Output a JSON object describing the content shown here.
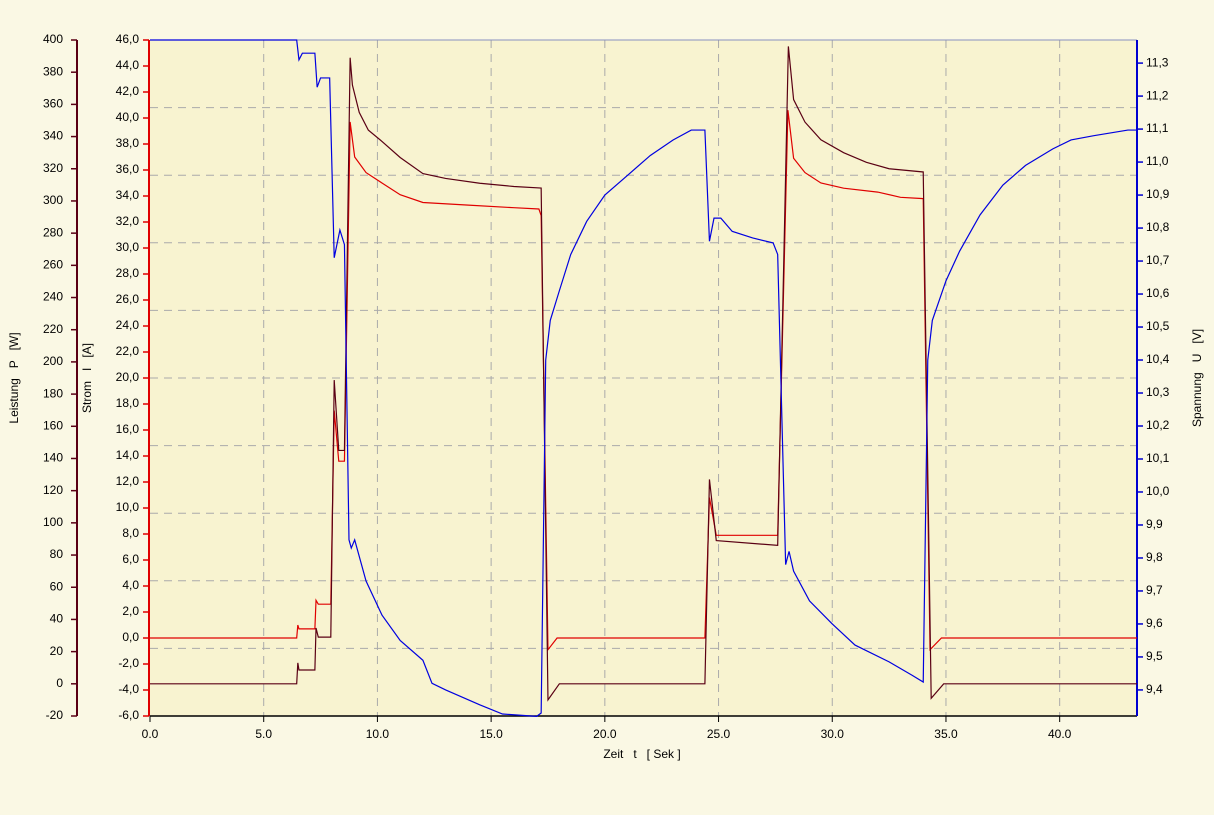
{
  "chart_data": {
    "type": "line",
    "x_label": "Zeit   t   [ Sek ]",
    "xlim": [
      0,
      43.4
    ],
    "xticks": [
      {
        "value": 0,
        "label": "0.0"
      },
      {
        "value": 5,
        "label": "5.0"
      },
      {
        "value": 10,
        "label": "10.0"
      },
      {
        "value": 15,
        "label": "15.0"
      },
      {
        "value": 20,
        "label": "20.0"
      },
      {
        "value": 25,
        "label": "25.0"
      },
      {
        "value": 30,
        "label": "30.0"
      },
      {
        "value": 35,
        "label": "35.0"
      },
      {
        "value": 40,
        "label": "40.0"
      }
    ],
    "grid": true,
    "y_axes": [
      {
        "label": "Leistung   P   [W]",
        "color": "#5a0014",
        "lim": [
          -20,
          400
        ],
        "ticks": [
          -20,
          0,
          20,
          40,
          60,
          80,
          100,
          120,
          140,
          160,
          180,
          200,
          220,
          240,
          260,
          280,
          300,
          320,
          340,
          360,
          380,
          400
        ]
      },
      {
        "label": "Strom   I   [A]",
        "color": "#e00000",
        "lim": [
          -6,
          46
        ],
        "ticks": [
          {
            "value": -6,
            "label": "-6,0"
          },
          {
            "value": -4,
            "label": "-4,0"
          },
          {
            "value": -2,
            "label": "-2,0"
          },
          {
            "value": 0,
            "label": "0,0"
          },
          {
            "value": 2,
            "label": "2,0"
          },
          {
            "value": 4,
            "label": "4,0"
          },
          {
            "value": 6,
            "label": "6,0"
          },
          {
            "value": 8,
            "label": "8,0"
          },
          {
            "value": 10,
            "label": "10,0"
          },
          {
            "value": 12,
            "label": "12,0"
          },
          {
            "value": 14,
            "label": "14,0"
          },
          {
            "value": 16,
            "label": "16,0"
          },
          {
            "value": 18,
            "label": "18,0"
          },
          {
            "value": 20,
            "label": "20,0"
          },
          {
            "value": 22,
            "label": "22,0"
          },
          {
            "value": 24,
            "label": "24,0"
          },
          {
            "value": 26,
            "label": "26,0"
          },
          {
            "value": 28,
            "label": "28,0"
          },
          {
            "value": 30,
            "label": "30,0"
          },
          {
            "value": 32,
            "label": "32,0"
          },
          {
            "value": 34,
            "label": "34,0"
          },
          {
            "value": 36,
            "label": "36,0"
          },
          {
            "value": 38,
            "label": "38,0"
          },
          {
            "value": 40,
            "label": "40,0"
          },
          {
            "value": 42,
            "label": "42,0"
          },
          {
            "value": 44,
            "label": "44,0"
          },
          {
            "value": 46,
            "label": "46,0"
          }
        ]
      },
      {
        "label": "Spannung   U   [V]",
        "color": "#0000d0",
        "lim": [
          9.321,
          11.37
        ],
        "ticks": [
          {
            "value": 9.4,
            "label": "9,4"
          },
          {
            "value": 9.5,
            "label": "9,5"
          },
          {
            "value": 9.6,
            "label": "9,6"
          },
          {
            "value": 9.7,
            "label": "9,7"
          },
          {
            "value": 9.8,
            "label": "9,8"
          },
          {
            "value": 9.9,
            "label": "9,9"
          },
          {
            "value": 10.0,
            "label": "10,0"
          },
          {
            "value": 10.1,
            "label": "10,1"
          },
          {
            "value": 10.2,
            "label": "10,2"
          },
          {
            "value": 10.3,
            "label": "10,3"
          },
          {
            "value": 10.4,
            "label": "10,4"
          },
          {
            "value": 10.5,
            "label": "10,5"
          },
          {
            "value": 10.6,
            "label": "10,6"
          },
          {
            "value": 10.7,
            "label": "10,7"
          },
          {
            "value": 10.8,
            "label": "10,8"
          },
          {
            "value": 10.9,
            "label": "10,9"
          },
          {
            "value": 11.0,
            "label": "11,0"
          },
          {
            "value": 11.1,
            "label": "11,1"
          },
          {
            "value": 11.2,
            "label": "11,2"
          },
          {
            "value": 11.3,
            "label": "11,3"
          }
        ]
      }
    ],
    "series": [
      {
        "color": "#e00000",
        "axis": 1,
        "x": [
          0,
          6.45,
          6.5,
          6.55,
          7.25,
          7.3,
          7.4,
          7.95,
          8.1,
          8.3,
          8.55,
          8.8,
          9.0,
          9.5,
          10.2,
          11.0,
          12.0,
          14.0,
          16.0,
          17.1,
          17.2,
          17.5,
          17.9,
          24.4,
          24.6,
          24.9,
          27.6,
          28.05,
          28.3,
          28.8,
          29.5,
          30.5,
          32.0,
          33.0,
          34.0,
          34.3,
          34.8,
          43.4
        ],
        "values": [
          0,
          0,
          1.0,
          0.7,
          0.7,
          2.9,
          2.6,
          2.6,
          17.5,
          13.6,
          13.6,
          39.7,
          37.0,
          35.8,
          35.0,
          34.1,
          33.5,
          33.3,
          33.1,
          33.0,
          32.5,
          -0.9,
          0,
          0,
          10.8,
          7.9,
          7.9,
          40.6,
          36.9,
          35.8,
          35.0,
          34.6,
          34.3,
          33.9,
          33.8,
          -0.9,
          0,
          0
        ]
      },
      {
        "color": "#5a0014",
        "axis": 0,
        "x": [
          0,
          6.45,
          6.5,
          6.55,
          7.25,
          7.3,
          7.4,
          7.95,
          8.1,
          8.3,
          8.55,
          8.8,
          8.9,
          9.2,
          9.6,
          10.2,
          11.0,
          12.0,
          13.0,
          14.5,
          16.0,
          17.2,
          17.5,
          18.0,
          24.4,
          24.6,
          24.9,
          27.6,
          28.07,
          28.3,
          28.8,
          29.5,
          30.5,
          31.5,
          32.5,
          34.0,
          34.35,
          34.9,
          43.4
        ],
        "values": [
          0,
          0,
          13,
          8.6,
          8.6,
          34.7,
          29,
          29,
          188.7,
          145,
          145,
          389,
          372,
          355,
          344,
          337,
          327,
          317,
          314,
          311,
          309,
          308,
          -10,
          0,
          0,
          127,
          89,
          86,
          396,
          363,
          349,
          338,
          330,
          324,
          320,
          318,
          -9,
          0,
          0
        ]
      },
      {
        "color": "#0000e0",
        "axis": 2,
        "x": [
          0,
          6.45,
          6.55,
          6.7,
          7.25,
          7.35,
          7.5,
          7.9,
          8.1,
          8.35,
          8.55,
          8.75,
          8.85,
          9.0,
          9.5,
          10.2,
          11.0,
          12.0,
          12.4,
          13.0,
          14.5,
          15.5,
          17.0,
          17.2,
          17.4,
          17.6,
          18.0,
          18.5,
          19.2,
          20.0,
          21.0,
          22.0,
          23.0,
          23.8,
          24.4,
          24.6,
          24.8,
          25.1,
          25.6,
          26.5,
          27.4,
          27.6,
          27.95,
          28.1,
          28.3,
          29.0,
          30.0,
          31.0,
          32.5,
          33.5,
          34.0,
          34.2,
          34.4,
          35.0,
          35.6,
          36.5,
          37.5,
          38.5,
          39.7,
          40.5,
          41.5,
          43.0,
          43.4
        ],
        "values": [
          11.37,
          11.37,
          11.31,
          11.33,
          11.33,
          11.227,
          11.255,
          11.255,
          10.71,
          10.794,
          10.75,
          9.855,
          9.83,
          9.855,
          9.73,
          9.627,
          9.55,
          9.49,
          9.42,
          9.4,
          9.355,
          9.327,
          9.32,
          9.33,
          10.4,
          10.52,
          10.61,
          10.72,
          10.82,
          10.9,
          10.96,
          11.02,
          11.067,
          11.097,
          11.097,
          10.76,
          10.83,
          10.83,
          10.79,
          10.77,
          10.755,
          10.72,
          9.78,
          9.82,
          9.76,
          9.67,
          9.6,
          9.536,
          9.485,
          9.445,
          9.424,
          10.4,
          10.52,
          10.64,
          10.73,
          10.84,
          10.93,
          10.99,
          11.04,
          11.067,
          11.08,
          11.097,
          11.097
        ]
      }
    ]
  }
}
